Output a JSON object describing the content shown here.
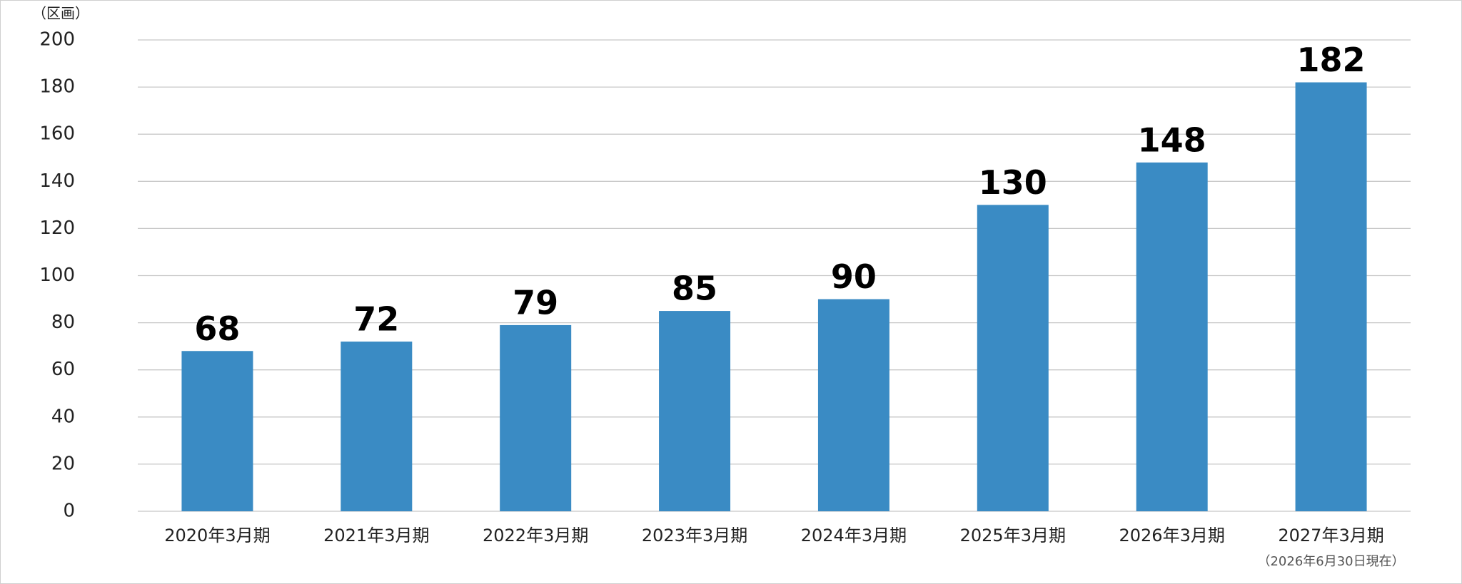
{
  "chart_data": {
    "type": "bar",
    "y_label": "（区画）",
    "categories": [
      "2020年3月期",
      "2021年3月期",
      "2022年3月期",
      "2023年3月期",
      "2024年3月期",
      "2025年3月期",
      "2026年3月期",
      "2027年3月期"
    ],
    "values": [
      68,
      72,
      79,
      85,
      90,
      130,
      148,
      182
    ],
    "annotation": "（2026年6月30日現在）",
    "color": "#3a8bc4",
    "ylim": [
      0,
      200
    ],
    "yticks": [
      0,
      20,
      40,
      60,
      80,
      100,
      120,
      140,
      160,
      180,
      200
    ],
    "grid": true
  }
}
